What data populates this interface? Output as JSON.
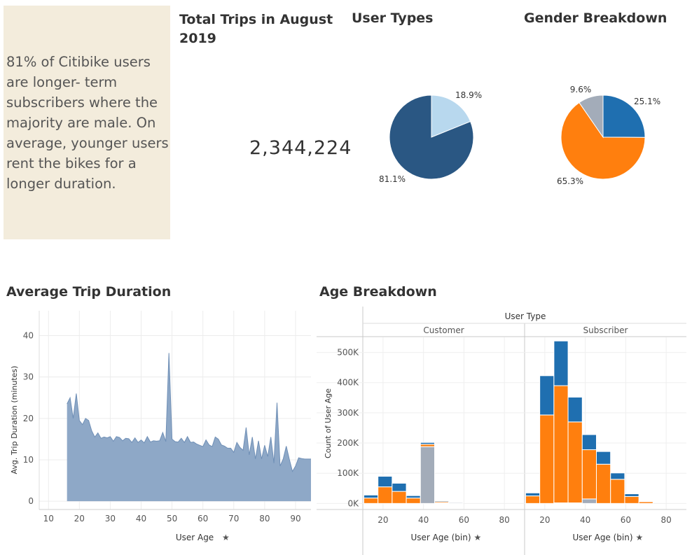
{
  "note": {
    "lines": [
      "81% of Citibike users",
      "are longer- term",
      "subscribers where the",
      "majority are male. On",
      "average, younger users",
      "rent the bikes for a",
      "longer duration."
    ]
  },
  "total_trips": {
    "title_line1": "Total Trips in August",
    "title_line2": "2019",
    "value": "2,344,224"
  },
  "user_types": {
    "title": "User Types"
  },
  "gender": {
    "title": "Gender Breakdown"
  },
  "avg_duration": {
    "title": "Average Trip Duration"
  },
  "age_breakdown": {
    "title": "Age Breakdown"
  },
  "colors": {
    "subscriber": "#2a5783",
    "customer": "#b8d8ee",
    "male": "#ff7f0e",
    "female": "#1f6fb0",
    "unknown": "#a3acb9",
    "area": "#8ea8c7",
    "area_line": "#6f8fb6",
    "note_bg": "#f3ecdc"
  },
  "chart_data": [
    {
      "type": "pie",
      "title": "User Types",
      "slices": [
        {
          "label": "18.9%",
          "value": 18.9,
          "color": "#b8d8ee"
        },
        {
          "label": "81.1%",
          "value": 81.1,
          "color": "#2a5783"
        }
      ]
    },
    {
      "type": "pie",
      "title": "Gender Breakdown",
      "slices": [
        {
          "label": "25.1%",
          "value": 25.1,
          "color": "#1f6fb0"
        },
        {
          "label": "65.3%",
          "value": 65.3,
          "color": "#ff7f0e"
        },
        {
          "label": "9.6%",
          "value": 9.6,
          "color": "#a3acb9"
        }
      ]
    },
    {
      "type": "area",
      "title": "Average Trip Duration",
      "xlabel": "User Age",
      "ylabel": "Avg. Trip Duration (minutes)",
      "xlim": [
        7,
        95
      ],
      "ylim": [
        -2,
        46
      ],
      "xticks": [
        10,
        20,
        30,
        40,
        50,
        60,
        70,
        80,
        90
      ],
      "yticks": [
        0,
        10,
        20,
        30,
        40
      ],
      "x": [
        16,
        17,
        18,
        19,
        20,
        21,
        22,
        23,
        24,
        25,
        26,
        27,
        28,
        29,
        30,
        31,
        32,
        33,
        34,
        35,
        36,
        37,
        38,
        39,
        40,
        41,
        42,
        43,
        44,
        45,
        46,
        47,
        48,
        49,
        50,
        51,
        52,
        53,
        54,
        55,
        56,
        57,
        58,
        59,
        60,
        61,
        62,
        63,
        64,
        65,
        66,
        67,
        68,
        69,
        70,
        71,
        72,
        73,
        74,
        75,
        76,
        77,
        78,
        79,
        80,
        81,
        82,
        83,
        84,
        85,
        86,
        87,
        88,
        89,
        90,
        91,
        92,
        93,
        94,
        95
      ],
      "y": [
        23.5,
        25,
        20,
        26,
        19.5,
        18.5,
        20,
        19.5,
        17,
        15.5,
        16.5,
        15.2,
        15.5,
        15.3,
        15.6,
        14.5,
        15.6,
        15.4,
        14.6,
        15.2,
        15.1,
        14.2,
        15.3,
        14.2,
        14.8,
        14.1,
        15.6,
        14.3,
        14.6,
        14.5,
        14.6,
        16.6,
        14.4,
        35.8,
        15,
        14.4,
        14.3,
        15.2,
        14.2,
        15.6,
        14.2,
        14.3,
        13.8,
        13.5,
        13.2,
        14.8,
        13.6,
        13.2,
        15.5,
        15,
        13.6,
        13.3,
        12.8,
        12.8,
        11.8,
        14.2,
        13,
        12.3,
        17.8,
        11.2,
        15.5,
        10.2,
        14.6,
        10.2,
        13.5,
        10.8,
        15.5,
        9.2,
        23.8,
        8.5,
        10.2,
        13.3,
        10.1,
        7.2,
        8.5,
        10.5,
        10.3,
        10.2,
        10.2,
        10.2
      ]
    },
    {
      "type": "bar",
      "title": "Age Breakdown",
      "header": "User Type",
      "panels": [
        "Customer",
        "Subscriber"
      ],
      "xlabel": "User Age (bin)",
      "ylabel": "Count of User Age",
      "xlim": [
        10,
        90
      ],
      "ylim": [
        -20000,
        550000
      ],
      "xticks": [
        20,
        40,
        60,
        80
      ],
      "yticks": [
        0,
        100000,
        200000,
        300000,
        400000,
        500000
      ],
      "ytick_labels": [
        "0K",
        "100K",
        "200K",
        "300K",
        "400K",
        "500K"
      ],
      "bin_width": 7,
      "series_colors": {
        "Unknown": "#a3acb9",
        "Male": "#ff7f0e",
        "Female": "#1f6fb0"
      },
      "bins": [
        {
          "panel": "Customer",
          "x": 14,
          "Unknown": 0,
          "Male": 18000,
          "Female": 10000
        },
        {
          "panel": "Customer",
          "x": 21,
          "Unknown": 0,
          "Male": 55000,
          "Female": 35000
        },
        {
          "panel": "Customer",
          "x": 28,
          "Unknown": 0,
          "Male": 40000,
          "Female": 27000
        },
        {
          "panel": "Customer",
          "x": 35,
          "Unknown": 0,
          "Male": 18000,
          "Female": 8000
        },
        {
          "panel": "Customer",
          "x": 42,
          "Unknown": 188000,
          "Male": 8000,
          "Female": 6000
        },
        {
          "panel": "Customer",
          "x": 49,
          "Unknown": 2000,
          "Male": 4000,
          "Female": 3000
        },
        {
          "panel": "Customer",
          "x": 56,
          "Unknown": 3000,
          "Male": 1500,
          "Female": 1000
        },
        {
          "panel": "Subscriber",
          "x": 14,
          "Unknown": 0,
          "Male": 25000,
          "Female": 10000
        },
        {
          "panel": "Subscriber",
          "x": 21,
          "Unknown": 0,
          "Male": 293000,
          "Female": 130000
        },
        {
          "panel": "Subscriber",
          "x": 28,
          "Unknown": 2000,
          "Male": 388000,
          "Female": 148000
        },
        {
          "panel": "Subscriber",
          "x": 35,
          "Unknown": 2000,
          "Male": 268000,
          "Female": 82000
        },
        {
          "panel": "Subscriber",
          "x": 42,
          "Unknown": 15000,
          "Male": 163000,
          "Female": 50000
        },
        {
          "panel": "Subscriber",
          "x": 49,
          "Unknown": 0,
          "Male": 130000,
          "Female": 42000
        },
        {
          "panel": "Subscriber",
          "x": 56,
          "Unknown": 0,
          "Male": 80000,
          "Female": 21000
        },
        {
          "panel": "Subscriber",
          "x": 63,
          "Unknown": 0,
          "Male": 23000,
          "Female": 9000
        },
        {
          "panel": "Subscriber",
          "x": 70,
          "Unknown": 0,
          "Male": 6000,
          "Female": 2000
        }
      ]
    }
  ]
}
